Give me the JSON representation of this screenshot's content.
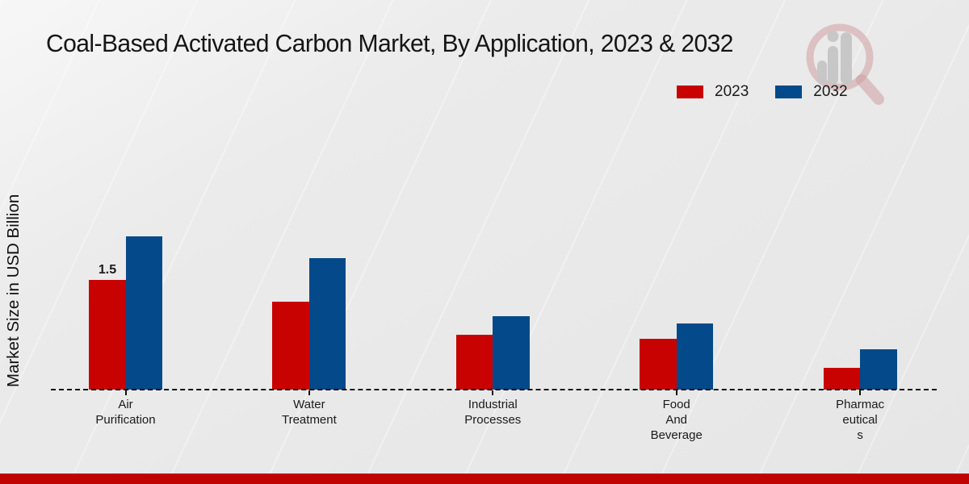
{
  "title": "Coal-Based Activated Carbon Market, By Application, 2023 & 2032",
  "ylabel": "Market Size in USD Billion",
  "legend": {
    "items": [
      {
        "label": "2023",
        "color": "#c80101"
      },
      {
        "label": "2032",
        "color": "#04498a"
      }
    ]
  },
  "watermark": {
    "name": "market-research-magnifier-logo",
    "ring_color": "#cf9fa3",
    "bar_color": "#c6c6c6"
  },
  "footer": {
    "bar_color": "#c00404"
  },
  "chart_data": {
    "type": "bar",
    "title": "Coal-Based Activated Carbon Market, By Application, 2023 & 2032",
    "ylabel": "Market Size in USD Billion",
    "xlabel": "",
    "categories": [
      "Air Purification",
      "Water Treatment",
      "Industrial Processes",
      "Food And Beverage",
      "Pharmaceuticals"
    ],
    "category_label_lines": [
      [
        "Air",
        "Purification"
      ],
      [
        "Water",
        "Treatment"
      ],
      [
        "Industrial",
        "Processes"
      ],
      [
        "Food",
        "And",
        "Beverage"
      ],
      [
        "Pharmac",
        "eutical",
        "s"
      ]
    ],
    "series": [
      {
        "name": "2023",
        "color": "#c80101",
        "values": [
          1.5,
          1.2,
          0.75,
          0.7,
          0.3
        ]
      },
      {
        "name": "2032",
        "color": "#04498a",
        "values": [
          2.1,
          1.8,
          1.0,
          0.9,
          0.55
        ]
      }
    ],
    "annotations": [
      {
        "series_index": 0,
        "category_index": 0,
        "text": "1.5"
      }
    ],
    "unit": "USD Billion",
    "legend_position": "top-right",
    "grid": false,
    "y_axis_ticks_visible": false,
    "baseline_style": "dashed"
  }
}
